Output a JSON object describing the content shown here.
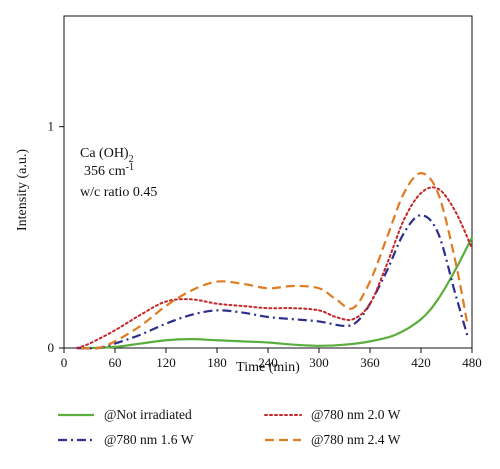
{
  "chart_data": {
    "type": "line",
    "xlabel": "Time (min)",
    "ylabel": "Intensity (a.u.)",
    "xlim": [
      0,
      480
    ],
    "ylim": [
      0,
      1.5
    ],
    "xticks": [
      0,
      60,
      120,
      180,
      240,
      300,
      360,
      420,
      480
    ],
    "xtick_labels": [
      "0",
      "60",
      "120",
      "180",
      "240",
      "300",
      "360",
      "420",
      "480"
    ],
    "yticks": [
      0,
      1
    ],
    "ytick_labels": [
      "0",
      "1"
    ],
    "grid": false,
    "legend_position": "bottom",
    "annotation": {
      "line1_base": "Ca (OH)",
      "line1_sub": "2",
      "line2_base": "356 cm",
      "line2_sup": "-1",
      "line3": "w/c ratio 0.45"
    },
    "series": [
      {
        "name": "@Not irradiated",
        "color": "#5aae3c",
        "dash": "solid",
        "x": [
          15,
          30,
          60,
          90,
          120,
          150,
          180,
          210,
          240,
          270,
          300,
          330,
          360,
          390,
          420,
          440,
          460,
          480
        ],
        "y": [
          0.0,
          0.0,
          0.005,
          0.02,
          0.035,
          0.04,
          0.035,
          0.03,
          0.025,
          0.015,
          0.01,
          0.015,
          0.03,
          0.06,
          0.13,
          0.22,
          0.35,
          0.5
        ]
      },
      {
        "name": "@780 nm 1.6 W",
        "color": "#2e2e8c",
        "dash": "dashdot",
        "x": [
          15,
          40,
          60,
          90,
          120,
          150,
          180,
          210,
          240,
          270,
          300,
          330,
          345,
          360,
          380,
          400,
          420,
          440,
          460,
          475
        ],
        "y": [
          0.0,
          0.0,
          0.02,
          0.06,
          0.11,
          0.15,
          0.17,
          0.16,
          0.14,
          0.13,
          0.12,
          0.1,
          0.12,
          0.2,
          0.35,
          0.52,
          0.6,
          0.52,
          0.25,
          0.05
        ]
      },
      {
        "name": "@780 nm 2.0 W",
        "color": "#c62828",
        "dash": "dotted",
        "x": [
          15,
          30,
          60,
          90,
          120,
          150,
          180,
          210,
          240,
          270,
          300,
          320,
          340,
          360,
          380,
          400,
          420,
          440,
          460,
          480
        ],
        "y": [
          0.0,
          0.02,
          0.08,
          0.15,
          0.21,
          0.22,
          0.2,
          0.19,
          0.18,
          0.18,
          0.17,
          0.14,
          0.13,
          0.2,
          0.38,
          0.58,
          0.7,
          0.72,
          0.62,
          0.45
        ]
      },
      {
        "name": "@780 nm 2.4 W",
        "color": "#e07b22",
        "dash": "dashed",
        "x": [
          20,
          40,
          60,
          90,
          120,
          150,
          180,
          210,
          240,
          270,
          300,
          320,
          340,
          360,
          380,
          400,
          420,
          440,
          460,
          475
        ],
        "y": [
          0.0,
          0.0,
          0.03,
          0.1,
          0.19,
          0.26,
          0.3,
          0.29,
          0.27,
          0.28,
          0.27,
          0.22,
          0.18,
          0.3,
          0.5,
          0.7,
          0.79,
          0.7,
          0.4,
          0.1
        ]
      }
    ]
  }
}
